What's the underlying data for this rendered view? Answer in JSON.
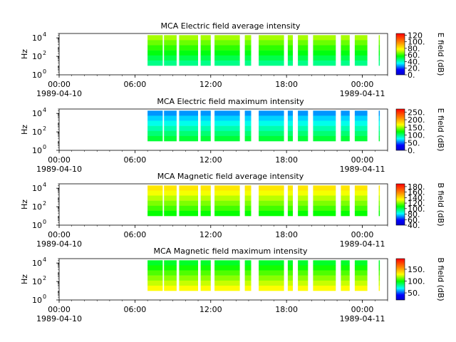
{
  "figure": {
    "background": "#ffffff"
  },
  "chart_data": [
    {
      "type": "heatmap",
      "title": "MCA  Electric field average intensity",
      "ylabel": "Hz",
      "yscale": "log",
      "ylim": [
        1,
        30000
      ],
      "y_ticks": [
        {
          "value": 1,
          "base": "10",
          "exp": "0"
        },
        {
          "value": 100,
          "base": "10",
          "exp": "2"
        },
        {
          "value": 10000,
          "base": "10",
          "exp": "4"
        }
      ],
      "x_range_hours": [
        0,
        26
      ],
      "x_tick_labels": [
        {
          "hour": 0,
          "time": "00:00",
          "date": "1989-04-10"
        },
        {
          "hour": 6,
          "time": "06:00",
          "date": ""
        },
        {
          "hour": 12,
          "time": "12:00",
          "date": ""
        },
        {
          "hour": 18,
          "time": "18:00",
          "date": ""
        },
        {
          "hour": 24,
          "time": "00:00",
          "date": "1989-04-11"
        }
      ],
      "colorbar": {
        "label": "E field (dB)",
        "range": [
          0,
          125
        ],
        "ticks": [
          "0.",
          "20.",
          "40.",
          "60.",
          "80.",
          "100.",
          "120"
        ]
      },
      "freq_range_hz": [
        10,
        20000
      ],
      "level": 55,
      "data_intervals_hours": [
        [
          7.0,
          8.2
        ],
        [
          8.3,
          9.3
        ],
        [
          9.5,
          11.0
        ],
        [
          11.2,
          12.0
        ],
        [
          12.3,
          14.3
        ],
        [
          14.7,
          15.2
        ],
        [
          15.8,
          17.8
        ],
        [
          18.1,
          18.5
        ],
        [
          18.9,
          19.7
        ],
        [
          20.1,
          21.9
        ],
        [
          22.3,
          23.0
        ],
        [
          23.4,
          24.4
        ],
        [
          25.3,
          25.35
        ]
      ]
    },
    {
      "type": "heatmap",
      "title": "MCA  Electric field maximum intensity",
      "ylabel": "Hz",
      "yscale": "log",
      "ylim": [
        1,
        30000
      ],
      "y_ticks": [
        {
          "value": 1,
          "base": "10",
          "exp": "0"
        },
        {
          "value": 100,
          "base": "10",
          "exp": "2"
        },
        {
          "value": 10000,
          "base": "10",
          "exp": "4"
        }
      ],
      "x_range_hours": [
        0,
        26
      ],
      "x_tick_labels": [
        {
          "hour": 0,
          "time": "00:00",
          "date": "1989-04-10"
        },
        {
          "hour": 6,
          "time": "06:00",
          "date": ""
        },
        {
          "hour": 12,
          "time": "12:00",
          "date": ""
        },
        {
          "hour": 18,
          "time": "18:00",
          "date": ""
        },
        {
          "hour": 24,
          "time": "00:00",
          "date": "1989-04-11"
        }
      ],
      "colorbar": {
        "label": "E field (dB)",
        "range": [
          0,
          270
        ],
        "ticks": [
          "0.",
          "50.",
          "100.",
          "150.",
          "200.",
          "250."
        ]
      },
      "freq_range_hz": [
        10,
        20000
      ],
      "level": 90,
      "data_intervals_hours": [
        [
          7.0,
          8.2
        ],
        [
          8.3,
          9.3
        ],
        [
          9.5,
          11.0
        ],
        [
          11.2,
          12.0
        ],
        [
          12.3,
          14.3
        ],
        [
          14.7,
          15.2
        ],
        [
          15.8,
          17.8
        ],
        [
          18.1,
          18.5
        ],
        [
          18.9,
          19.7
        ],
        [
          20.1,
          21.9
        ],
        [
          22.3,
          23.0
        ],
        [
          23.4,
          24.4
        ],
        [
          25.3,
          25.35
        ]
      ]
    },
    {
      "type": "heatmap",
      "title": "MCA  Magnetic field average intensity",
      "ylabel": "Hz",
      "yscale": "log",
      "ylim": [
        1,
        30000
      ],
      "y_ticks": [
        {
          "value": 1,
          "base": "10",
          "exp": "0"
        },
        {
          "value": 100,
          "base": "10",
          "exp": "2"
        },
        {
          "value": 10000,
          "base": "10",
          "exp": "4"
        }
      ],
      "x_range_hours": [
        0,
        26
      ],
      "x_tick_labels": [
        {
          "hour": 0,
          "time": "00:00",
          "date": "1989-04-10"
        },
        {
          "hour": 6,
          "time": "06:00",
          "date": ""
        },
        {
          "hour": 12,
          "time": "12:00",
          "date": ""
        },
        {
          "hour": 18,
          "time": "18:00",
          "date": ""
        },
        {
          "hour": 24,
          "time": "00:00",
          "date": "1989-04-11"
        }
      ],
      "colorbar": {
        "label": "B field (dB)",
        "range": [
          40,
          190
        ],
        "ticks": [
          "40.",
          "60.",
          "80.",
          "100.",
          "120.",
          "140.",
          "160.",
          "180."
        ]
      },
      "freq_range_hz": [
        10,
        20000
      ],
      "level": 120,
      "data_intervals_hours": [
        [
          7.0,
          8.2
        ],
        [
          8.3,
          9.3
        ],
        [
          9.5,
          11.0
        ],
        [
          11.2,
          12.0
        ],
        [
          12.3,
          14.3
        ],
        [
          14.7,
          15.2
        ],
        [
          15.8,
          17.8
        ],
        [
          18.1,
          18.5
        ],
        [
          18.9,
          19.7
        ],
        [
          20.1,
          21.9
        ],
        [
          22.3,
          23.0
        ],
        [
          23.4,
          24.4
        ],
        [
          25.3,
          25.35
        ]
      ]
    },
    {
      "type": "heatmap",
      "title": "MCA  Magnetic field maximum intensity",
      "ylabel": "Hz",
      "yscale": "log",
      "ylim": [
        1,
        30000
      ],
      "y_ticks": [
        {
          "value": 1,
          "base": "10",
          "exp": "0"
        },
        {
          "value": 100,
          "base": "10",
          "exp": "2"
        },
        {
          "value": 10000,
          "base": "10",
          "exp": "4"
        }
      ],
      "x_range_hours": [
        0,
        26
      ],
      "x_tick_labels": [
        {
          "hour": 0,
          "time": "00:00",
          "date": "1989-04-10"
        },
        {
          "hour": 6,
          "time": "06:00",
          "date": ""
        },
        {
          "hour": 12,
          "time": "12:00",
          "date": ""
        },
        {
          "hour": 18,
          "time": "18:00",
          "date": ""
        },
        {
          "hour": 24,
          "time": "00:00",
          "date": "1989-04-11"
        }
      ],
      "colorbar": {
        "label": "B field (dB)",
        "range": [
          20,
          195
        ],
        "ticks": [
          "50.",
          "100.",
          "150."
        ]
      },
      "freq_range_hz": [
        10,
        20000
      ],
      "level": 115,
      "data_intervals_hours": [
        [
          7.0,
          8.2
        ],
        [
          8.3,
          9.3
        ],
        [
          9.5,
          11.0
        ],
        [
          11.2,
          12.0
        ],
        [
          12.3,
          14.3
        ],
        [
          14.7,
          15.2
        ],
        [
          15.8,
          17.8
        ],
        [
          18.1,
          18.5
        ],
        [
          18.9,
          19.7
        ],
        [
          20.1,
          21.9
        ],
        [
          22.3,
          23.0
        ],
        [
          23.4,
          24.4
        ],
        [
          25.3,
          25.35
        ]
      ]
    }
  ]
}
